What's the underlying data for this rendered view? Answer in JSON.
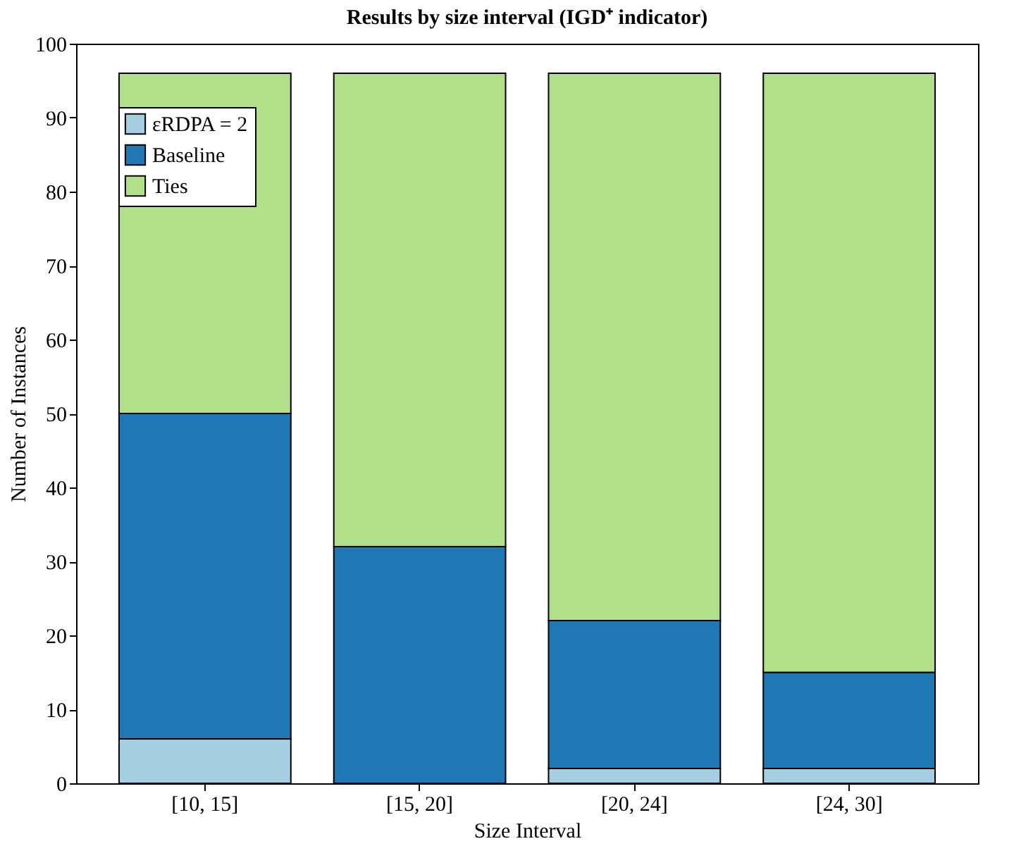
{
  "chart_data": {
    "type": "bar",
    "title": "Results by size interval (IGD⁺ indicator)",
    "xlabel": "Size Interval",
    "ylabel": "Number of Instances",
    "categories": [
      "[10, 15]",
      "[15, 20]",
      "[20, 24]",
      "[24, 30]"
    ],
    "stacked": true,
    "series": [
      {
        "name": "εRDPA = 2",
        "color": "#a6cee3",
        "values": [
          6,
          0,
          2,
          2
        ]
      },
      {
        "name": "Baseline",
        "color": "#1f78b4",
        "values": [
          44,
          32,
          20,
          13
        ]
      },
      {
        "name": "Ties",
        "color": "#b2df8a",
        "values": [
          46,
          64,
          74,
          81
        ]
      }
    ],
    "ylim": [
      0,
      100
    ],
    "yticks": [
      0,
      10,
      20,
      30,
      40,
      50,
      60,
      70,
      80,
      90,
      100
    ],
    "grid": false,
    "legend": "top left"
  }
}
